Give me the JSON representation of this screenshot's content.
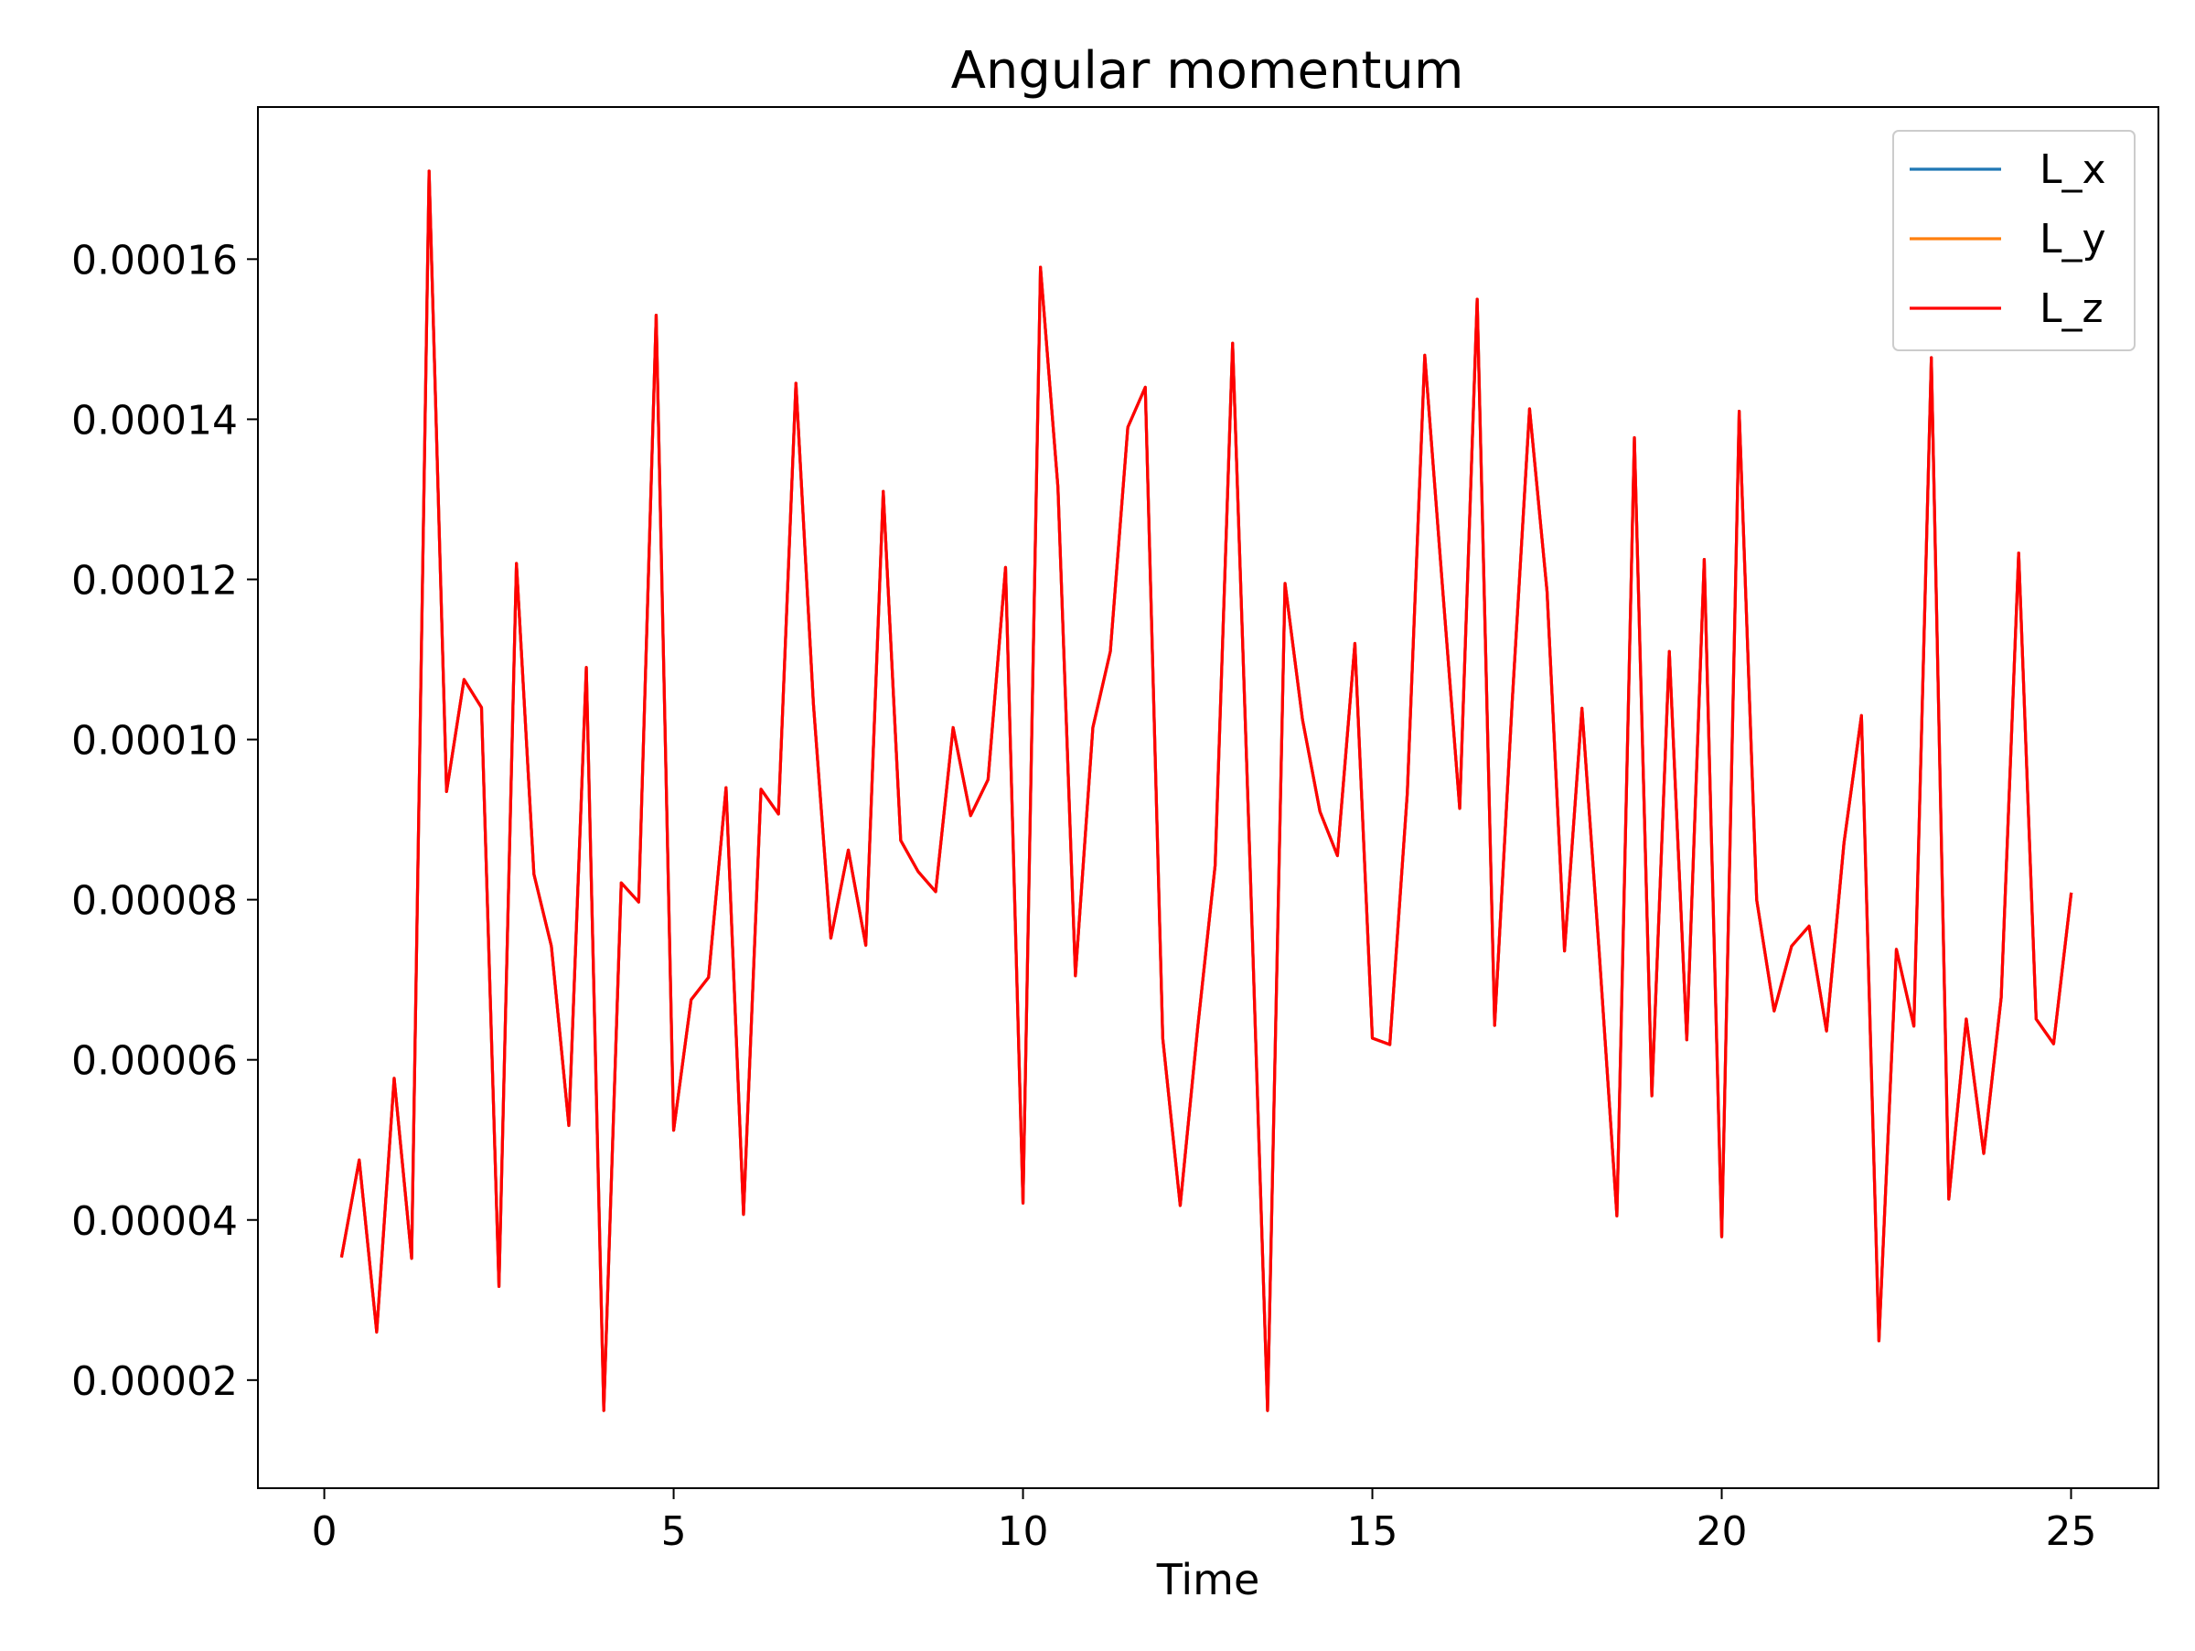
{
  "chart_data": {
    "type": "line",
    "title": "Angular momentum",
    "xlabel": "Time",
    "ylabel": "",
    "xlim": [
      -0.95,
      26.25
    ],
    "ylim": [
      6.5e-06,
      0.000179
    ],
    "xticks": [
      0,
      5,
      10,
      15,
      20,
      25
    ],
    "xtick_labels": [
      "0",
      "5",
      "10",
      "15",
      "20",
      "25"
    ],
    "yticks": [
      2e-05,
      4e-05,
      6e-05,
      8e-05,
      0.0001,
      0.00012,
      0.00014,
      0.00016
    ],
    "ytick_labels": [
      "0.00002",
      "0.00004",
      "0.00006",
      "0.00008",
      "0.00010",
      "0.00012",
      "0.00014",
      "0.00016"
    ],
    "grid": false,
    "legend_position": "top-right",
    "x": [
      0.25,
      0.5,
      0.75,
      1.0,
      1.25,
      1.5,
      1.75,
      2.0,
      2.25,
      2.5,
      2.75,
      3.0,
      3.25,
      3.5,
      3.75,
      4.0,
      4.25,
      4.5,
      4.75,
      5.0,
      5.25,
      5.5,
      5.75,
      6.0,
      6.25,
      6.5,
      6.75,
      7.0,
      7.25,
      7.5,
      7.75,
      8.0,
      8.25,
      8.5,
      8.75,
      9.0,
      9.25,
      9.5,
      9.75,
      10.0,
      10.25,
      10.5,
      10.75,
      11.0,
      11.25,
      11.5,
      11.75,
      12.0,
      12.25,
      12.5,
      12.75,
      13.0,
      13.25,
      13.5,
      13.75,
      14.0,
      14.25,
      14.5,
      14.75,
      15.0,
      15.25,
      15.5,
      15.75,
      16.0,
      16.25,
      16.5,
      16.75,
      17.0,
      17.25,
      17.5,
      17.75,
      18.0,
      18.25,
      18.5,
      18.75,
      19.0,
      19.25,
      19.5,
      19.75,
      20.0,
      20.25,
      20.5,
      20.75,
      21.0,
      21.25,
      21.5,
      21.75,
      22.0,
      22.25,
      22.5,
      22.75,
      23.0,
      23.25,
      23.5,
      23.75,
      24.0,
      24.25,
      24.5,
      24.75,
      25.0
    ],
    "series": [
      {
        "name": "L_x",
        "color": "#1f77b4",
        "values": [
          3.55e-05,
          4.75e-05,
          2.6e-05,
          5.77e-05,
          3.52e-05,
          0.000171,
          9.35e-05,
          0.0001075,
          0.000104,
          3.17e-05,
          0.000122,
          8.32e-05,
          7.42e-05,
          5.18e-05,
          0.000109,
          1.62e-05,
          8.21e-05,
          7.97e-05,
          0.000153,
          5.12e-05,
          6.75e-05,
          7.03e-05,
          9.4e-05,
          4.07e-05,
          9.38e-05,
          9.07e-05,
          0.0001445,
          0.0001045,
          7.52e-05,
          8.62e-05,
          7.43e-05,
          0.000131,
          8.74e-05,
          8.35e-05,
          8.1e-05,
          0.0001015,
          9.05e-05,
          9.5e-05,
          0.0001215,
          4.21e-05,
          0.000159,
          0.0001315,
          7.05e-05,
          0.0001015,
          0.000111,
          0.000139,
          0.000144,
          6.27e-05,
          4.18e-05,
          6.4e-05,
          8.43e-05,
          0.0001495,
          8.43e-05,
          1.62e-05,
          0.0001195,
          0.0001025,
          9.1e-05,
          8.55e-05,
          0.000112,
          6.27e-05,
          6.19e-05,
          9.33e-05,
          0.000148,
          0.0001195,
          9.14e-05,
          0.000155,
          6.43e-05,
          0.0001045,
          0.0001413,
          0.0001185,
          7.36e-05,
          0.0001039,
          7.3e-05,
          4.05e-05,
          0.0001377,
          5.55e-05,
          0.000111,
          6.25e-05,
          0.0001225,
          3.79e-05,
          0.000141,
          8e-05,
          6.61e-05,
          7.42e-05,
          7.67e-05,
          6.36e-05,
          8.71e-05,
          0.000103,
          2.49e-05,
          7.38e-05,
          6.42e-05,
          0.0001477,
          4.26e-05,
          6.51e-05,
          4.83e-05,
          6.78e-05,
          0.0001233,
          6.51e-05,
          6.2e-05,
          8.07e-05
        ]
      },
      {
        "name": "L_y",
        "color": "#ff7f0e",
        "values": [
          3.55e-05,
          4.75e-05,
          2.6e-05,
          5.77e-05,
          3.52e-05,
          0.000171,
          9.35e-05,
          0.0001075,
          0.000104,
          3.17e-05,
          0.000122,
          8.32e-05,
          7.42e-05,
          5.18e-05,
          0.000109,
          1.62e-05,
          8.21e-05,
          7.97e-05,
          0.000153,
          5.12e-05,
          6.75e-05,
          7.03e-05,
          9.4e-05,
          4.07e-05,
          9.38e-05,
          9.07e-05,
          0.0001445,
          0.0001045,
          7.52e-05,
          8.62e-05,
          7.43e-05,
          0.000131,
          8.74e-05,
          8.35e-05,
          8.1e-05,
          0.0001015,
          9.05e-05,
          9.5e-05,
          0.0001215,
          4.21e-05,
          0.000159,
          0.0001315,
          7.05e-05,
          0.0001015,
          0.000111,
          0.000139,
          0.000144,
          6.27e-05,
          4.18e-05,
          6.4e-05,
          8.43e-05,
          0.0001495,
          8.43e-05,
          1.62e-05,
          0.0001195,
          0.0001025,
          9.1e-05,
          8.55e-05,
          0.000112,
          6.27e-05,
          6.19e-05,
          9.33e-05,
          0.000148,
          0.0001195,
          9.14e-05,
          0.000155,
          6.43e-05,
          0.0001045,
          0.0001413,
          0.0001185,
          7.36e-05,
          0.0001039,
          7.3e-05,
          4.05e-05,
          0.0001377,
          5.55e-05,
          0.000111,
          6.25e-05,
          0.0001225,
          3.79e-05,
          0.000141,
          8e-05,
          6.61e-05,
          7.42e-05,
          7.67e-05,
          6.36e-05,
          8.71e-05,
          0.000103,
          2.49e-05,
          7.38e-05,
          6.42e-05,
          0.0001477,
          4.26e-05,
          6.51e-05,
          4.83e-05,
          6.78e-05,
          0.0001233,
          6.51e-05,
          6.2e-05,
          8.07e-05
        ]
      },
      {
        "name": "L_z",
        "color": "#ff0000",
        "values": [
          3.55e-05,
          4.75e-05,
          2.6e-05,
          5.77e-05,
          3.52e-05,
          0.000171,
          9.35e-05,
          0.0001075,
          0.000104,
          3.17e-05,
          0.000122,
          8.32e-05,
          7.42e-05,
          5.18e-05,
          0.000109,
          1.62e-05,
          8.21e-05,
          7.97e-05,
          0.000153,
          5.12e-05,
          6.75e-05,
          7.03e-05,
          9.4e-05,
          4.07e-05,
          9.38e-05,
          9.07e-05,
          0.0001445,
          0.0001045,
          7.52e-05,
          8.62e-05,
          7.43e-05,
          0.000131,
          8.74e-05,
          8.35e-05,
          8.1e-05,
          0.0001015,
          9.05e-05,
          9.5e-05,
          0.0001215,
          4.21e-05,
          0.000159,
          0.0001315,
          7.05e-05,
          0.0001015,
          0.000111,
          0.000139,
          0.000144,
          6.27e-05,
          4.18e-05,
          6.4e-05,
          8.43e-05,
          0.0001495,
          8.43e-05,
          1.62e-05,
          0.0001195,
          0.0001025,
          9.1e-05,
          8.55e-05,
          0.000112,
          6.27e-05,
          6.19e-05,
          9.33e-05,
          0.000148,
          0.0001195,
          9.14e-05,
          0.000155,
          6.43e-05,
          0.0001045,
          0.0001413,
          0.0001185,
          7.36e-05,
          0.0001039,
          7.3e-05,
          4.05e-05,
          0.0001377,
          5.55e-05,
          0.000111,
          6.25e-05,
          0.0001225,
          3.79e-05,
          0.000141,
          8e-05,
          6.61e-05,
          7.42e-05,
          7.67e-05,
          6.36e-05,
          8.71e-05,
          0.000103,
          2.49e-05,
          7.38e-05,
          6.42e-05,
          0.0001477,
          4.26e-05,
          6.51e-05,
          4.83e-05,
          6.78e-05,
          0.0001233,
          6.51e-05,
          6.2e-05,
          8.07e-05
        ]
      }
    ]
  }
}
